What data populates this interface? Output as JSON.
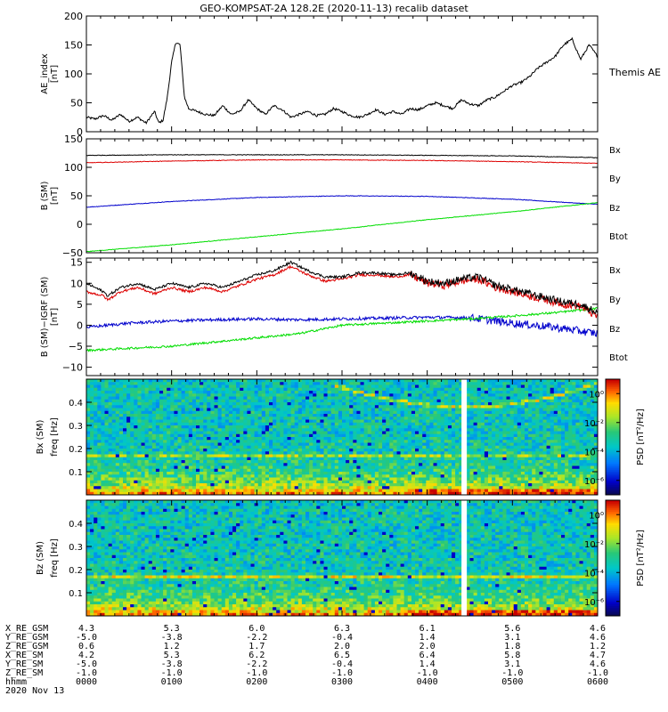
{
  "chart_data": {
    "type": "line",
    "title": "GEO-KOMPSAT-2A 128.2E (2020-11-13) recalib dataset",
    "x_range_hhmm": [
      "0000",
      "0600"
    ],
    "panels": [
      {
        "type": "line",
        "ylabel": [
          "AE_index",
          "[nT]"
        ],
        "ylim": [
          0,
          200
        ],
        "yticks": [
          "0",
          "50",
          "100",
          "150",
          "200"
        ],
        "series": [
          {
            "name": "Themis AE",
            "color": "#000000",
            "x": [
              0.0,
              0.1,
              0.2,
              0.3,
              0.4,
              0.5,
              0.6,
              0.7,
              0.8,
              0.85,
              0.9,
              0.95,
              1.0,
              1.05,
              1.1,
              1.15,
              1.2,
              1.3,
              1.4,
              1.5,
              1.6,
              1.7,
              1.8,
              1.9,
              2.0,
              2.1,
              2.2,
              2.3,
              2.4,
              2.5,
              2.6,
              2.7,
              2.8,
              2.9,
              3.0,
              3.1,
              3.2,
              3.3,
              3.4,
              3.5,
              3.6,
              3.7,
              3.8,
              3.9,
              4.0,
              4.1,
              4.2,
              4.3,
              4.4,
              4.5,
              4.6,
              4.7,
              4.8,
              4.9,
              5.0,
              5.1,
              5.2,
              5.3,
              5.4,
              5.5,
              5.6,
              5.7,
              5.8,
              5.9,
              6.0
            ],
            "y": [
              25,
              22,
              28,
              20,
              30,
              18,
              25,
              15,
              35,
              15,
              20,
              60,
              120,
              155,
              150,
              60,
              40,
              35,
              30,
              28,
              45,
              30,
              35,
              55,
              40,
              30,
              45,
              38,
              25,
              30,
              35,
              28,
              30,
              40,
              35,
              28,
              25,
              30,
              38,
              30,
              35,
              30,
              40,
              38,
              45,
              50,
              45,
              40,
              55,
              48,
              45,
              55,
              60,
              70,
              80,
              85,
              95,
              110,
              120,
              130,
              150,
              160,
              125,
              150,
              130
            ]
          }
        ]
      },
      {
        "type": "line",
        "ylabel": [
          "B (SM)",
          "[nT]"
        ],
        "ylim": [
          -50,
          150
        ],
        "yticks": [
          "−50",
          "0",
          "50",
          "100",
          "150"
        ],
        "legend": [
          "Bx",
          "By",
          "Bz",
          "Btot"
        ],
        "series": [
          {
            "name": "Bx",
            "color": "#0000cc",
            "x": [
              0,
              1,
              2,
              3,
              4,
              5,
              6
            ],
            "y": [
              30,
              40,
              47,
              50,
              49,
              44,
              35
            ]
          },
          {
            "name": "By",
            "color": "#00dd00",
            "x": [
              0,
              1,
              2,
              3,
              4,
              5,
              6
            ],
            "y": [
              -48,
              -36,
              -22,
              -8,
              8,
              22,
              38
            ]
          },
          {
            "name": "Bz",
            "color": "#dd0000",
            "x": [
              0,
              1,
              2,
              3,
              4,
              5,
              6
            ],
            "y": [
              108,
              111,
              113,
              113,
              112,
              110,
              107
            ]
          },
          {
            "name": "Btot",
            "color": "#000000",
            "x": [
              0,
              1,
              2,
              3,
              4,
              5,
              6
            ],
            "y": [
              121,
              122,
              122,
              122,
              121,
              120,
              117
            ]
          }
        ]
      },
      {
        "type": "line",
        "ylabel": [
          "B (SM)−IGRF (SM)",
          "[nT]"
        ],
        "ylim": [
          -12,
          16
        ],
        "yticks": [
          "−10",
          "−5",
          "0",
          "5",
          "10",
          "15"
        ],
        "legend": [
          "Bx",
          "By",
          "Bz",
          "Btot"
        ],
        "series": [
          {
            "name": "Bx",
            "color": "#0000cc",
            "x": [
              0,
              0.5,
              1,
              1.5,
              2,
              2.5,
              3,
              3.5,
              4,
              4.5,
              5,
              5.5,
              6
            ],
            "y": [
              -0.5,
              0.5,
              1,
              1.3,
              1.5,
              1.3,
              1.5,
              1.7,
              1.9,
              1.8,
              0.5,
              -0.5,
              -2
            ]
          },
          {
            "name": "By",
            "color": "#00dd00",
            "x": [
              0,
              0.5,
              1,
              1.5,
              2,
              2.5,
              3,
              3.5,
              4,
              4.5,
              5,
              5.5,
              6
            ],
            "y": [
              -6,
              -5.5,
              -5,
              -4,
              -3,
              -2,
              0,
              0.5,
              1,
              1.5,
              2.2,
              3,
              4
            ]
          },
          {
            "name": "Bz",
            "color": "#dd0000",
            "x": [
              0,
              0.2,
              0.25,
              0.4,
              0.6,
              0.8,
              1.0,
              1.2,
              1.4,
              1.6,
              1.8,
              2.0,
              2.2,
              2.4,
              2.6,
              2.8,
              3.0,
              3.2,
              3.4,
              3.6,
              3.8,
              4.0,
              4.2,
              4.4,
              4.6,
              4.8,
              5.0,
              5.2,
              5.4,
              5.6,
              5.8,
              6.0
            ],
            "y": [
              8,
              7,
              6,
              8,
              9,
              7.5,
              9,
              8,
              9,
              8,
              9.5,
              11,
              12,
              14,
              12,
              10.5,
              11,
              12,
              12,
              11.5,
              12,
              10,
              9.5,
              10.5,
              11,
              9,
              8,
              7,
              6,
              5,
              4.5,
              2
            ]
          },
          {
            "name": "Btot",
            "color": "#000000",
            "x": [
              0,
              0.2,
              0.25,
              0.4,
              0.6,
              0.8,
              1.0,
              1.2,
              1.4,
              1.6,
              1.8,
              2.0,
              2.2,
              2.4,
              2.6,
              2.8,
              3.0,
              3.2,
              3.4,
              3.6,
              3.8,
              4.0,
              4.2,
              4.4,
              4.6,
              4.8,
              5.0,
              5.2,
              5.4,
              5.6,
              5.8,
              6.0
            ],
            "y": [
              10,
              8,
              7,
              9,
              10,
              8.5,
              10,
              9,
              10,
              9,
              10.5,
              12,
              13,
              15,
              13,
              11.5,
              11.5,
              12.5,
              12.5,
              12,
              12.5,
              10.5,
              10,
              11,
              11.5,
              9.5,
              8.5,
              7.5,
              6.5,
              5.5,
              5,
              3
            ]
          }
        ]
      },
      {
        "type": "heatmap",
        "component": "Bx",
        "ylabel": [
          "Bx (SM)",
          "freq [Hz]"
        ],
        "ylim": [
          0,
          0.5
        ],
        "yticks": [
          "0.1",
          "0.2",
          "0.3",
          "0.4"
        ],
        "colorbar": {
          "label": "PSD [nT²/Hz]",
          "ticks": [
            "10⁰",
            "10⁻²",
            "10⁻⁴",
            "10⁻⁶"
          ],
          "range_log10": [
            -7,
            1
          ]
        },
        "data_gap_hhmm": "0426"
      },
      {
        "type": "heatmap",
        "component": "Bz",
        "ylabel": [
          "Bz (SM)",
          "freq [Hz]"
        ],
        "ylim": [
          0,
          0.5
        ],
        "yticks": [
          "0.1",
          "0.2",
          "0.3",
          "0.4"
        ],
        "colorbar": {
          "label": "PSD [nT²/Hz]",
          "ticks": [
            "10⁰",
            "10⁻²",
            "10⁻⁴",
            "10⁻⁶"
          ],
          "range_log10": [
            -7,
            1
          ]
        },
        "data_gap_hhmm": "0426"
      }
    ],
    "ephemeris": {
      "labels": [
        "X_RE_GSM",
        "Y_RE_GSM",
        "Z_RE_GSM",
        "X_RE_SM",
        "Y_RE_SM",
        "Z_RE_SM",
        "hhmm"
      ],
      "columns": [
        [
          "4.3",
          "-5.0",
          "0.6",
          "4.2",
          "-5.0",
          "-1.0",
          "0000"
        ],
        [
          "5.3",
          "-3.8",
          "1.2",
          "5.3",
          "-3.8",
          "-1.0",
          "0100"
        ],
        [
          "6.0",
          "-2.2",
          "1.7",
          "6.2",
          "-2.2",
          "-1.0",
          "0200"
        ],
        [
          "6.3",
          "-0.4",
          "2.0",
          "6.5",
          "-0.4",
          "-1.0",
          "0300"
        ],
        [
          "6.1",
          "1.4",
          "2.0",
          "6.4",
          "1.4",
          "-1.0",
          "0400"
        ],
        [
          "5.6",
          "3.1",
          "1.8",
          "5.8",
          "3.1",
          "-1.0",
          "0500"
        ],
        [
          "4.6",
          "4.6",
          "1.2",
          "4.7",
          "4.6",
          "-1.0",
          "0600"
        ]
      ],
      "date": "2020 Nov 13"
    }
  }
}
